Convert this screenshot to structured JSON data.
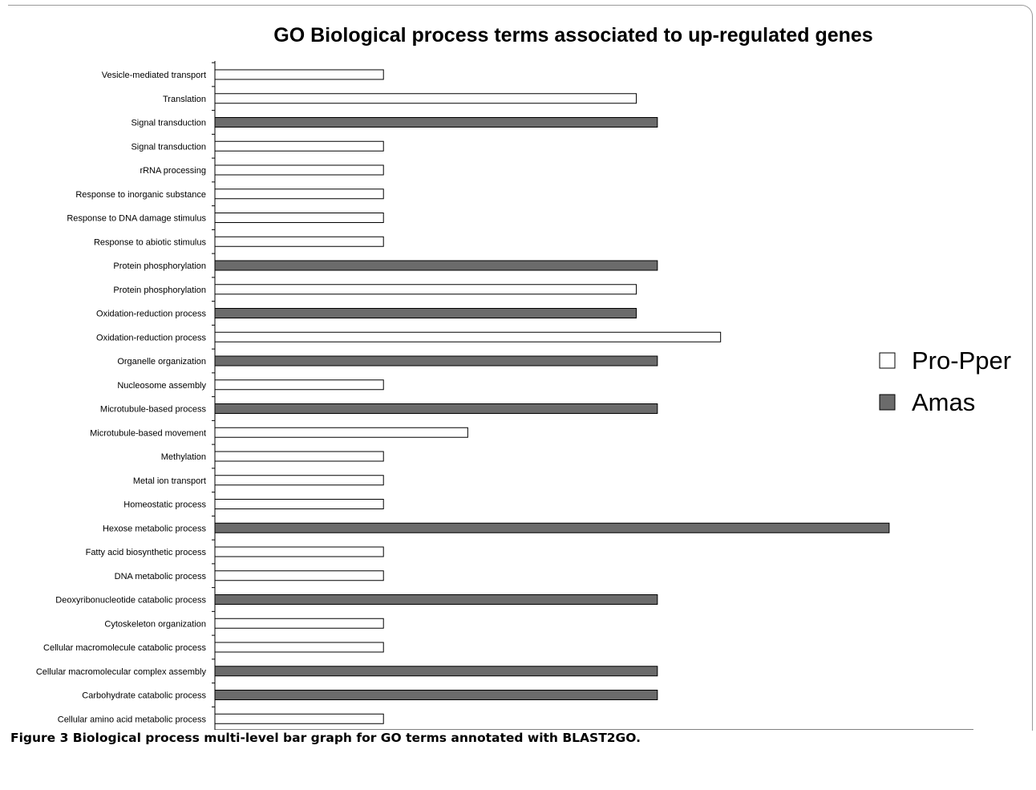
{
  "chart_data": {
    "type": "bar",
    "orientation": "horizontal",
    "title": "GO Biological process terms associated to up-regulated genes",
    "xlabel": "%",
    "xlim": [
      0,
      18
    ],
    "xticks": [
      0,
      2,
      4,
      6,
      8,
      10,
      12,
      14,
      16,
      18
    ],
    "legend_position": "right",
    "series": [
      {
        "name": "Pro-Pper",
        "color": "#ffffff"
      },
      {
        "name": "Amas",
        "color": "#6b6b6b"
      }
    ],
    "bars": [
      {
        "category": "Vesicle-mediated transport",
        "series": "Pro-Pper",
        "value": 4
      },
      {
        "category": "Translation",
        "series": "Pro-Pper",
        "value": 10
      },
      {
        "category": "Signal transduction",
        "series": "Amas",
        "value": 10.5
      },
      {
        "category": "Signal transduction",
        "series": "Pro-Pper",
        "value": 4
      },
      {
        "category": "rRNA processing",
        "series": "Pro-Pper",
        "value": 4
      },
      {
        "category": "Response to inorganic substance",
        "series": "Pro-Pper",
        "value": 4
      },
      {
        "category": "Response to DNA damage stimulus",
        "series": "Pro-Pper",
        "value": 4
      },
      {
        "category": "Response to abiotic stimulus",
        "series": "Pro-Pper",
        "value": 4
      },
      {
        "category": "Protein phosphorylation",
        "series": "Amas",
        "value": 10.5
      },
      {
        "category": "Protein phosphorylation",
        "series": "Pro-Pper",
        "value": 10
      },
      {
        "category": "Oxidation-reduction process",
        "series": "Amas",
        "value": 10
      },
      {
        "category": "Oxidation-reduction process",
        "series": "Pro-Pper",
        "value": 12
      },
      {
        "category": "Organelle organization",
        "series": "Amas",
        "value": 10.5
      },
      {
        "category": "Nucleosome assembly",
        "series": "Pro-Pper",
        "value": 4
      },
      {
        "category": "Microtubule-based process",
        "series": "Amas",
        "value": 10.5
      },
      {
        "category": "Microtubule-based movement",
        "series": "Pro-Pper",
        "value": 6
      },
      {
        "category": "Methylation",
        "series": "Pro-Pper",
        "value": 4
      },
      {
        "category": "Metal ion transport",
        "series": "Pro-Pper",
        "value": 4
      },
      {
        "category": "Homeostatic process",
        "series": "Pro-Pper",
        "value": 4
      },
      {
        "category": "Hexose metabolic process",
        "series": "Amas",
        "value": 16
      },
      {
        "category": "Fatty acid biosynthetic process",
        "series": "Pro-Pper",
        "value": 4
      },
      {
        "category": "DNA metabolic process",
        "series": "Pro-Pper",
        "value": 4
      },
      {
        "category": "Deoxyribonucleotide catabolic process",
        "series": "Amas",
        "value": 10.5
      },
      {
        "category": "Cytoskeleton organization",
        "series": "Pro-Pper",
        "value": 4
      },
      {
        "category": "Cellular macromolecule catabolic process",
        "series": "Pro-Pper",
        "value": 4
      },
      {
        "category": "Cellular macromolecular complex assembly",
        "series": "Amas",
        "value": 10.5
      },
      {
        "category": "Carbohydrate catabolic process",
        "series": "Amas",
        "value": 10.5
      },
      {
        "category": "Cellular amino acid metabolic process",
        "series": "Pro-Pper",
        "value": 4
      }
    ]
  },
  "caption": {
    "label": "Figure 3",
    "text": "Biological process multi-level bar graph for GO terms annotated with BLAST2GO."
  }
}
